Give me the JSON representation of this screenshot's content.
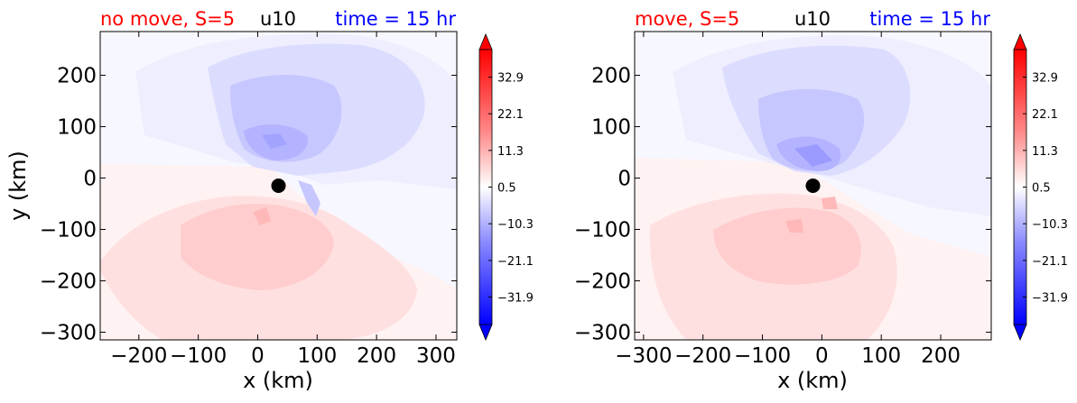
{
  "colors": {
    "red_label": "#ff0000",
    "blue_label": "#0000ff",
    "text": "#000000",
    "marker": "#000000"
  },
  "chart_data": [
    {
      "type": "heatmap",
      "title_left": "no move, S=5",
      "title_center": "u10",
      "title_right": "time = 15 hr",
      "xlabel": "x (km)",
      "ylabel": "y (km)",
      "xlim": [
        -265,
        335
      ],
      "ylim": [
        -315,
        285
      ],
      "xticks": [
        -200,
        -100,
        0,
        100,
        200,
        300
      ],
      "xtick_labels": [
        "−200",
        "−100",
        "0",
        "100",
        "200",
        "300"
      ],
      "yticks": [
        200,
        100,
        0,
        -100,
        -200,
        -300
      ],
      "ytick_labels": [
        "200",
        "100",
        "0",
        "−100",
        "−200",
        "−300"
      ],
      "marker": {
        "x": 35,
        "y": -15
      },
      "colorbar_ticks": [
        32.9,
        22.1,
        11.3,
        0.5,
        -10.3,
        -21.1,
        -31.9
      ],
      "colorbar_labels": [
        "32.9",
        "22.1",
        "11.3",
        "0.5",
        "−10.3",
        "−21.1",
        "−31.9"
      ],
      "colorbar_range": [
        -40,
        41
      ]
    },
    {
      "type": "heatmap",
      "title_left": "move, S=5",
      "title_center": "u10",
      "title_right": "time = 15 hr",
      "xlabel": "x (km)",
      "ylabel": "",
      "xlim": [
        -315,
        285
      ],
      "ylim": [
        -315,
        285
      ],
      "xticks": [
        -300,
        -200,
        -100,
        0,
        100,
        200
      ],
      "xtick_labels": [
        "−300",
        "−200",
        "−100",
        "0",
        "100",
        "200"
      ],
      "yticks": [
        200,
        100,
        0,
        -100,
        -200,
        -300
      ],
      "ytick_labels": [
        "200",
        "100",
        "0",
        "−100",
        "−200",
        "−300"
      ],
      "marker": {
        "x": -15,
        "y": -15
      },
      "colorbar_ticks": [
        32.9,
        22.1,
        11.3,
        0.5,
        -10.3,
        -21.1,
        -31.9
      ],
      "colorbar_labels": [
        "32.9",
        "22.1",
        "11.3",
        "0.5",
        "−10.3",
        "−21.1",
        "−31.9"
      ],
      "colorbar_range": [
        -40,
        41
      ]
    }
  ]
}
